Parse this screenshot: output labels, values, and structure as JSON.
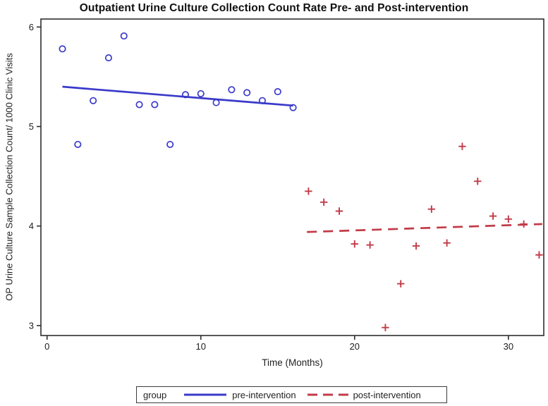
{
  "chart_data": {
    "type": "scatter",
    "title": "Outpatient Urine Culture Collection Count Rate Pre- and Post-intervention",
    "xlabel": "Time (Months)",
    "ylabel": "OP Urine Culture Sample Collection Count/ 1000 Clinic Visits",
    "xlim": [
      -0.4,
      32.3
    ],
    "ylim": [
      2.9,
      6.08
    ],
    "x_ticks": [
      0,
      10,
      20,
      30
    ],
    "y_ticks": [
      3,
      4,
      5,
      6
    ],
    "grid": false,
    "axis_color": "#2e2e2e",
    "legend": {
      "title": "group",
      "position": "bottom",
      "items": [
        {
          "label": "pre-intervention",
          "color": "#3a3aca",
          "line": "solid",
          "marker": "circle"
        },
        {
          "label": "post-intervention",
          "color": "#c23b48",
          "line": "dashed",
          "marker": "plus"
        }
      ]
    },
    "series": [
      {
        "name": "pre-intervention",
        "marker": "circle",
        "line": "solid",
        "color": "#3a3aca",
        "x": [
          1,
          2,
          3,
          4,
          5,
          6,
          7,
          8,
          9,
          10,
          11,
          12,
          13,
          14,
          15,
          16
        ],
        "y": [
          5.78,
          4.82,
          5.26,
          5.69,
          5.91,
          5.22,
          5.22,
          4.82,
          5.32,
          5.33,
          5.24,
          5.37,
          5.34,
          5.26,
          5.35,
          5.19
        ],
        "trendline": {
          "style": "solid",
          "x": [
            1,
            16
          ],
          "y": [
            5.4,
            5.21
          ]
        }
      },
      {
        "name": "post-intervention",
        "marker": "plus",
        "line": "dashed",
        "color": "#c23b48",
        "x": [
          17,
          18,
          19,
          20,
          21,
          22,
          23,
          24,
          25,
          26,
          27,
          28,
          29,
          30,
          31,
          32
        ],
        "y": [
          4.35,
          4.24,
          4.15,
          3.82,
          3.81,
          2.98,
          3.42,
          3.8,
          4.17,
          3.83,
          4.8,
          4.45,
          4.1,
          4.07,
          4.02,
          3.71
        ],
        "trendline": {
          "style": "dashed",
          "x": [
            16.9,
            32.2
          ],
          "y": [
            3.94,
            4.02
          ]
        }
      }
    ]
  }
}
